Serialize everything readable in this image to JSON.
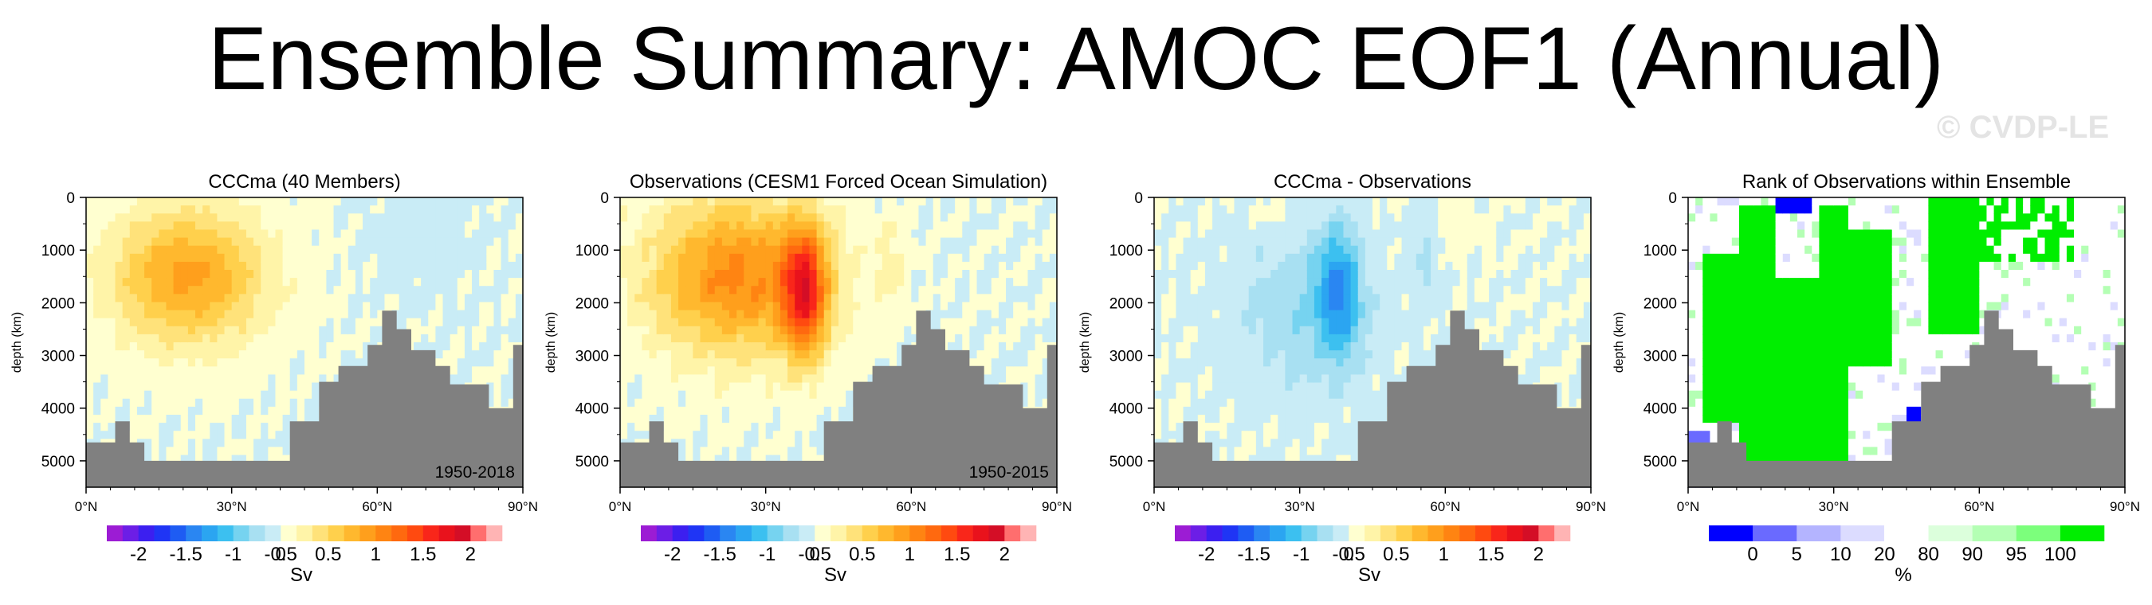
{
  "title": "Ensemble Summary: AMOC EOF1 (Annual)",
  "watermark": "© CVDP-LE",
  "chart_data": [
    {
      "type": "heatmap",
      "title": "CCCma (40 Members)",
      "ylabel": "depth (km)",
      "xlabel": "",
      "x_ticks": [
        "0°N",
        "30°N",
        "60°N",
        "90°N"
      ],
      "y_ticks": [
        "0",
        "1000",
        "2000",
        "3000",
        "4000",
        "5000"
      ],
      "xlim": [
        0,
        90
      ],
      "ylim": [
        5500,
        0
      ],
      "period": "1950-2018",
      "field": {
        "peak": 1.05,
        "cx": 21,
        "cy": 1500,
        "sx": 16,
        "sy": 1300,
        "secondary": 0,
        "sign": 1,
        "noise": 0.06
      },
      "colorbar": {
        "labels": [
          "-2",
          "-1.5",
          "-1",
          "-0.5",
          "0",
          "0.5",
          "1",
          "1.5",
          "2"
        ],
        "unit": "Sv",
        "colors": [
          "#9c1cd4",
          "#6c1ee6",
          "#3c1ff0",
          "#1f35f5",
          "#1e5cf3",
          "#2a86f2",
          "#2ba5f1",
          "#3cc0f0",
          "#76d3f0",
          "#a8e0f2",
          "#c9ecf6",
          "#ffffd0",
          "#fff4a8",
          "#ffe27a",
          "#ffd04c",
          "#ffb82e",
          "#ff9f1c",
          "#ff8412",
          "#ff690f",
          "#ff4a10",
          "#f9261a",
          "#e9121c",
          "#d40e26",
          "#ff6e6e",
          "#ffb4b4"
        ]
      }
    },
    {
      "type": "heatmap",
      "title": "Observations (CESM1 Forced Ocean Simulation)",
      "ylabel": "depth (km)",
      "xlabel": "",
      "x_ticks": [
        "0°N",
        "30°N",
        "60°N",
        "90°N"
      ],
      "y_ticks": [
        "0",
        "1000",
        "2000",
        "3000",
        "4000",
        "5000"
      ],
      "xlim": [
        0,
        90
      ],
      "ylim": [
        5500,
        0
      ],
      "period": "1950-2015",
      "field": {
        "peak": 1.25,
        "cx": 24,
        "cy": 1500,
        "sx": 18,
        "sy": 1500,
        "secondary": 1.6,
        "sign": 1,
        "noise": 0.1
      },
      "colorbar": {
        "labels": [
          "-2",
          "-1.5",
          "-1",
          "-0.5",
          "0",
          "0.5",
          "1",
          "1.5",
          "2"
        ],
        "unit": "Sv",
        "colors": [
          "#9c1cd4",
          "#6c1ee6",
          "#3c1ff0",
          "#1f35f5",
          "#1e5cf3",
          "#2a86f2",
          "#2ba5f1",
          "#3cc0f0",
          "#76d3f0",
          "#a8e0f2",
          "#c9ecf6",
          "#ffffd0",
          "#fff4a8",
          "#ffe27a",
          "#ffd04c",
          "#ffb82e",
          "#ff9f1c",
          "#ff8412",
          "#ff690f",
          "#ff4a10",
          "#f9261a",
          "#e9121c",
          "#d40e26",
          "#ff6e6e",
          "#ffb4b4"
        ]
      }
    },
    {
      "type": "heatmap",
      "title": "CCCma - Observations",
      "ylabel": "depth (km)",
      "xlabel": "",
      "x_ticks": [
        "0°N",
        "30°N",
        "60°N",
        "90°N"
      ],
      "y_ticks": [
        "0",
        "1000",
        "2000",
        "3000",
        "4000",
        "5000"
      ],
      "xlim": [
        0,
        90
      ],
      "ylim": [
        5500,
        0
      ],
      "period": "",
      "field": {
        "peak": -0.35,
        "cx": 30,
        "cy": 2200,
        "sx": 14,
        "sy": 1500,
        "secondary": -0.9,
        "sign": -1,
        "noise": 0.08
      },
      "colorbar": {
        "labels": [
          "-2",
          "-1.5",
          "-1",
          "-0.5",
          "0",
          "0.5",
          "1",
          "1.5",
          "2"
        ],
        "unit": "Sv",
        "colors": [
          "#9c1cd4",
          "#6c1ee6",
          "#3c1ff0",
          "#1f35f5",
          "#1e5cf3",
          "#2a86f2",
          "#2ba5f1",
          "#3cc0f0",
          "#76d3f0",
          "#a8e0f2",
          "#c9ecf6",
          "#ffffd0",
          "#fff4a8",
          "#ffe27a",
          "#ffd04c",
          "#ffb82e",
          "#ff9f1c",
          "#ff8412",
          "#ff690f",
          "#ff4a10",
          "#f9261a",
          "#e9121c",
          "#d40e26",
          "#ff6e6e",
          "#ffb4b4"
        ]
      }
    },
    {
      "type": "heatmap",
      "title": "Rank of Observations within Ensemble",
      "ylabel": "depth (km)",
      "xlabel": "",
      "x_ticks": [
        "0°N",
        "30°N",
        "60°N",
        "90°N"
      ],
      "y_ticks": [
        "0",
        "1000",
        "2000",
        "3000",
        "4000",
        "5000"
      ],
      "xlim": [
        0,
        90
      ],
      "ylim": [
        5500,
        0
      ],
      "period": "",
      "field": {
        "mode": "rank"
      },
      "colorbar": {
        "labels": [
          "0",
          "5",
          "10",
          "20",
          "80",
          "90",
          "95",
          "100"
        ],
        "unit": "%",
        "colors": [
          "#0000ff",
          "#6a6aff",
          "#b4b4ff",
          "#dcdcff",
          "#ffffff",
          "#dcffdc",
          "#b4ffb4",
          "#7cff7c",
          "#00ee00"
        ]
      }
    }
  ]
}
